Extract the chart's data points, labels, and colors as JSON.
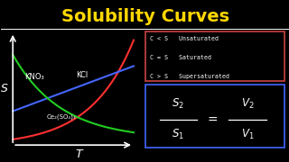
{
  "title": "Solubility Curves",
  "title_color": "#FFD700",
  "bg_color": "#000000",
  "curve_kno3_color": "#FF3030",
  "curve_kcl_color": "#4466FF",
  "curve_ce_color": "#22CC22",
  "axis_color": "#FFFFFF",
  "box1_edge_color": "#CC4444",
  "box2_edge_color": "#4466FF",
  "legend_lines": [
    "C < S   Unsaturated",
    "C = S   Saturated",
    "C > S   Supersaturated"
  ],
  "label_S": "S",
  "label_T": "T",
  "label_kno3": "KNO₃",
  "label_kcl": "KCl",
  "label_ce": "Ce₂(SO₄)₃",
  "gx0": 0.04,
  "gx1": 0.46,
  "gy0": 0.1,
  "gy1": 0.8
}
